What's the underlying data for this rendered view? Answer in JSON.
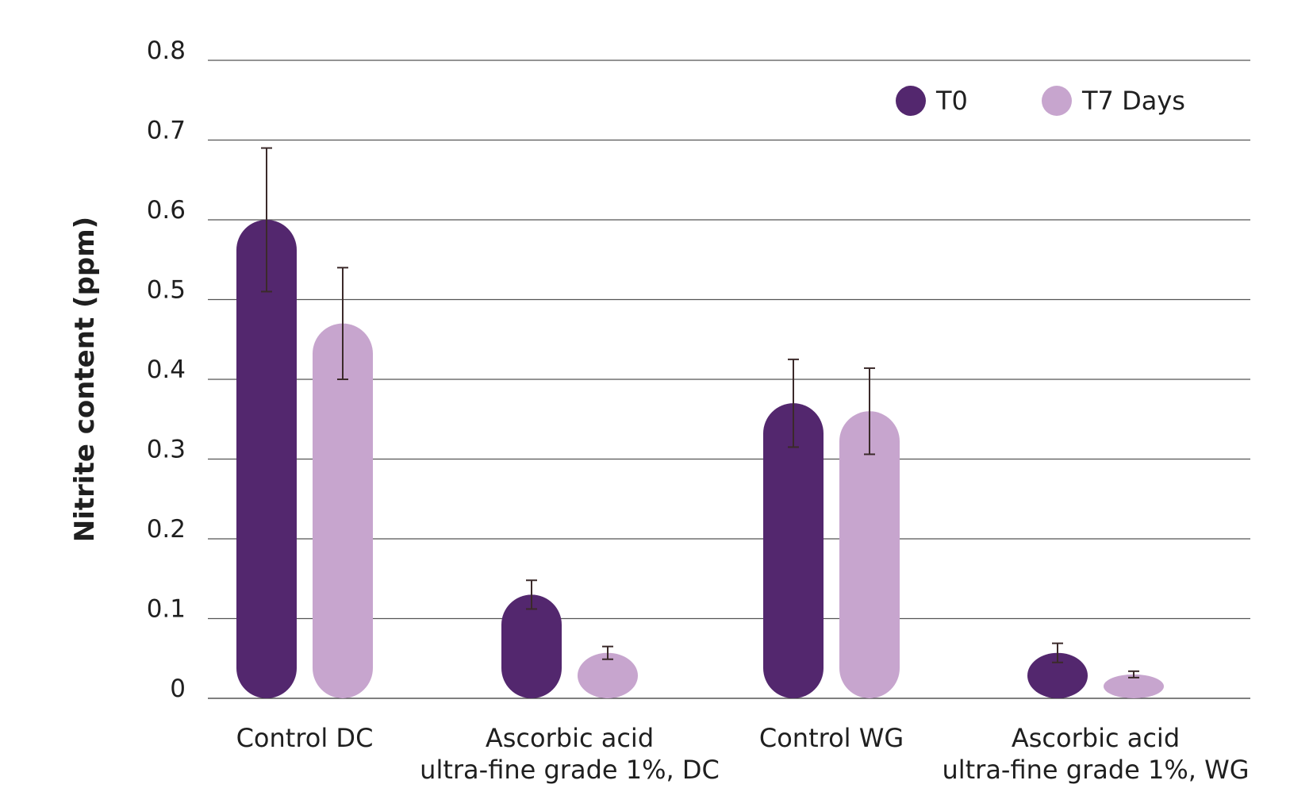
{
  "chart_data": {
    "type": "bar",
    "title": "",
    "xlabel": "",
    "ylabel": "Nitrite content (ppm)",
    "ylim": [
      0,
      0.8
    ],
    "yticks": [
      "0",
      "0.1",
      "0.2",
      "0.3",
      "0.4",
      "0.5",
      "0.6",
      "0.7",
      "0.8"
    ],
    "grid": true,
    "legend_position": "top-right",
    "categories": [
      [
        "Control DC"
      ],
      [
        "Ascorbic acid",
        "ultra-fine grade 1%, DC"
      ],
      [
        "Control WG"
      ],
      [
        "Ascorbic acid",
        "ultra-fine grade 1%, WG"
      ]
    ],
    "series": [
      {
        "name": "T0",
        "color": "#53276e",
        "values": [
          0.6,
          0.13,
          0.37,
          0.057
        ],
        "error": [
          0.09,
          0.018,
          0.055,
          0.012
        ]
      },
      {
        "name": "T7 Days",
        "color": "#c7a5ce",
        "values": [
          0.47,
          0.057,
          0.36,
          0.03
        ],
        "error": [
          0.07,
          0.008,
          0.054,
          0.004
        ]
      }
    ]
  }
}
